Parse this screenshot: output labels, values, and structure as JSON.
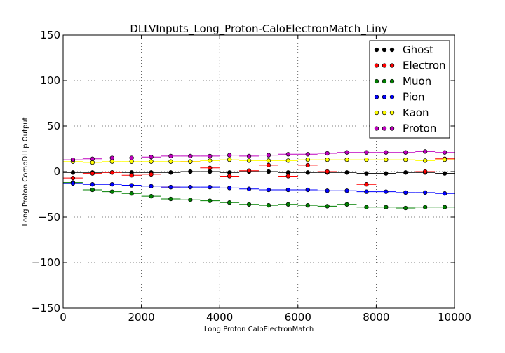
{
  "chart_data": {
    "type": "scatter",
    "title": "DLLVInputs_Long_Proton-CaloElectronMatch_Liny",
    "xlabel": "Long Proton CaloElectronMatch",
    "ylabel": "Long Proton CombDLLp Output",
    "xlim": [
      0,
      10000
    ],
    "ylim": [
      -150,
      150
    ],
    "xticks": [
      0,
      2000,
      4000,
      6000,
      8000,
      10000
    ],
    "yticks": [
      -150,
      -100,
      -50,
      0,
      50,
      100,
      150
    ],
    "xtick_labels": [
      "0",
      "2000",
      "4000",
      "6000",
      "8000",
      "10000"
    ],
    "ytick_labels": [
      "−150",
      "−100",
      "−50",
      "0",
      "50",
      "100",
      "150"
    ],
    "grid": true,
    "legend_position": "top-right",
    "x": [
      250,
      750,
      1250,
      1750,
      2250,
      2750,
      3250,
      3750,
      4250,
      4750,
      5250,
      5750,
      6250,
      6750,
      7250,
      7750,
      8250,
      8750,
      9250,
      9750
    ],
    "series": [
      {
        "name": "Ghost",
        "color": "#000000",
        "values": [
          -1,
          -1,
          -1,
          -1,
          -1,
          -1,
          0,
          0,
          -1,
          0,
          0,
          -1,
          -1,
          -1,
          -1,
          -2,
          -2,
          -1,
          -1,
          -2
        ]
      },
      {
        "name": "Electron",
        "color": "#ff0000",
        "values": [
          -7,
          -2,
          -1,
          -4,
          -3,
          -17,
          11,
          4,
          -5,
          1,
          7,
          -5,
          7,
          0,
          null,
          -14,
          null,
          null,
          0,
          14
        ]
      },
      {
        "name": "Muon",
        "color": "#008000",
        "values": [
          -12,
          -20,
          -22,
          -24,
          -27,
          -30,
          -31,
          -32,
          -34,
          -36,
          -37,
          -36,
          -37,
          -38,
          -36,
          -39,
          -39,
          -40,
          -39,
          -39
        ]
      },
      {
        "name": "Pion",
        "color": "#0000ff",
        "values": [
          -13,
          -14,
          -14,
          -15,
          -16,
          -17,
          -17,
          -17,
          -18,
          -19,
          -20,
          -20,
          -20,
          -21,
          -21,
          -22,
          -22,
          -23,
          -23,
          -24
        ]
      },
      {
        "name": "Kaon",
        "color": "#ffff00",
        "values": [
          11,
          10,
          11,
          11,
          11,
          11,
          11,
          12,
          13,
          12,
          12,
          12,
          13,
          13,
          13,
          13,
          13,
          13,
          12,
          13
        ]
      },
      {
        "name": "Proton",
        "color": "#bf00bf",
        "values": [
          13,
          14,
          15,
          15,
          16,
          17,
          17,
          17,
          18,
          17,
          18,
          19,
          19,
          20,
          21,
          21,
          21,
          21,
          22,
          21
        ]
      }
    ]
  }
}
